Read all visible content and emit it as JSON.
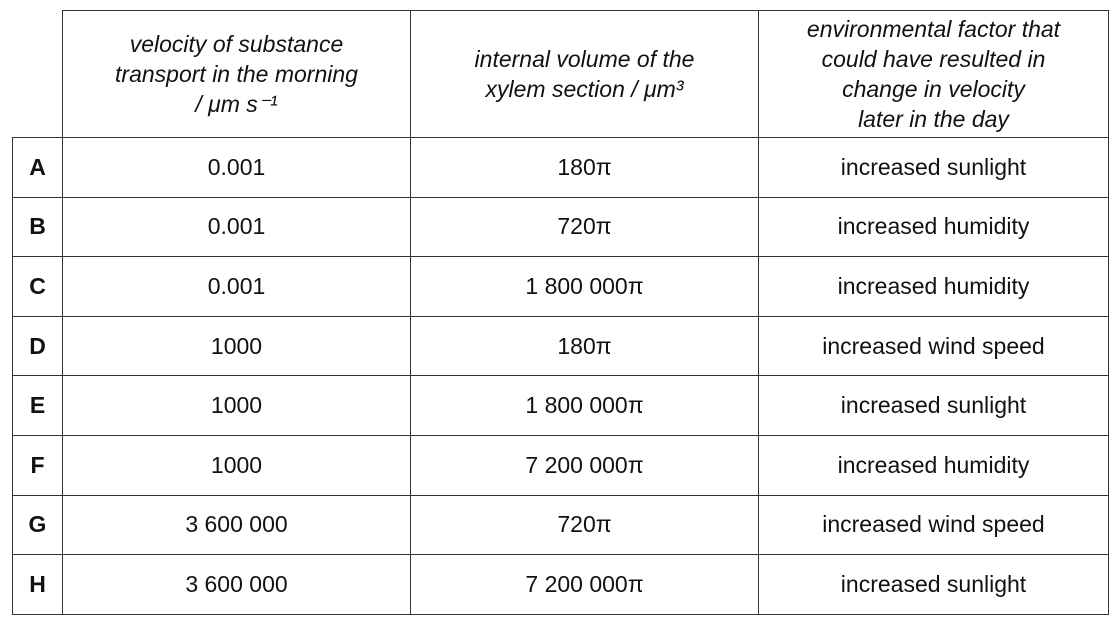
{
  "table": {
    "columns": [
      [
        "velocity of substance",
        "transport in the morning",
        "/ μm s⁻¹"
      ],
      [
        "internal volume of the",
        "xylem section / μm³"
      ],
      [
        "environmental factor that",
        "could have resulted in",
        "change in velocity",
        "later in the day"
      ]
    ],
    "rows": [
      [
        "A",
        "0.001",
        "180π",
        "increased sunlight"
      ],
      [
        "B",
        "0.001",
        "720π",
        "increased humidity"
      ],
      [
        "C",
        "0.001",
        "1 800 000π",
        "increased humidity"
      ],
      [
        "D",
        "1000",
        "180π",
        "increased wind speed"
      ],
      [
        "E",
        "1000",
        "1 800 000π",
        "increased sunlight"
      ],
      [
        "F",
        "1000",
        "7 200 000π",
        "increased humidity"
      ],
      [
        "G",
        "3 600 000",
        "720π",
        "increased wind speed"
      ],
      [
        "H",
        "3 600 000",
        "7 200 000π",
        "increased sunlight"
      ]
    ]
  }
}
